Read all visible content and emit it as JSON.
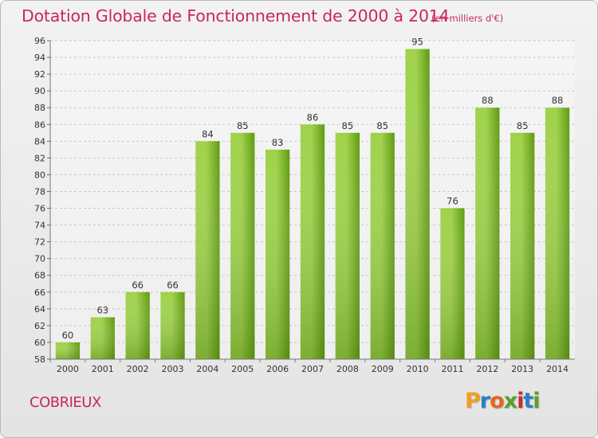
{
  "header": {
    "title": "Dotation Globale de Fonctionnement de 2000 à 2014",
    "subtitle": "(en milliers d'€)"
  },
  "footer": {
    "commune": "COBRIEUX",
    "logo_text": "Proxiti",
    "logo_colors": [
      "#f0a01e",
      "#2b7fc4",
      "#e8641e",
      "#5aa02c",
      "#d12b2b",
      "#2b7fc4",
      "#5aa02c"
    ]
  },
  "colors": {
    "accent": "#c8285a",
    "bar_light": "#9fd24a",
    "bar_dark": "#5f9a12",
    "grid": "#c8c8c8"
  },
  "chart_data": {
    "type": "bar",
    "categories": [
      "2000",
      "2001",
      "2002",
      "2003",
      "2004",
      "2005",
      "2006",
      "2007",
      "2008",
      "2009",
      "2010",
      "2011",
      "2012",
      "2013",
      "2014"
    ],
    "values": [
      60,
      63,
      66,
      66,
      84,
      85,
      83,
      86,
      85,
      85,
      95,
      76,
      88,
      85,
      88
    ],
    "data_labels": [
      "60",
      "63",
      "66",
      "66",
      "84",
      "85",
      "83",
      "86",
      "85",
      "85",
      "95",
      "76",
      "88",
      "85",
      "88"
    ],
    "title": "Dotation Globale de Fonctionnement de 2000 à 2014",
    "subtitle": "(en milliers d'€)",
    "xlabel": "",
    "ylabel": "",
    "ylim": [
      58,
      96
    ],
    "y_ticks": [
      58,
      60,
      62,
      64,
      66,
      68,
      70,
      72,
      74,
      76,
      78,
      80,
      82,
      84,
      86,
      88,
      90,
      92,
      94,
      96
    ],
    "grid": true,
    "legend": "none"
  }
}
